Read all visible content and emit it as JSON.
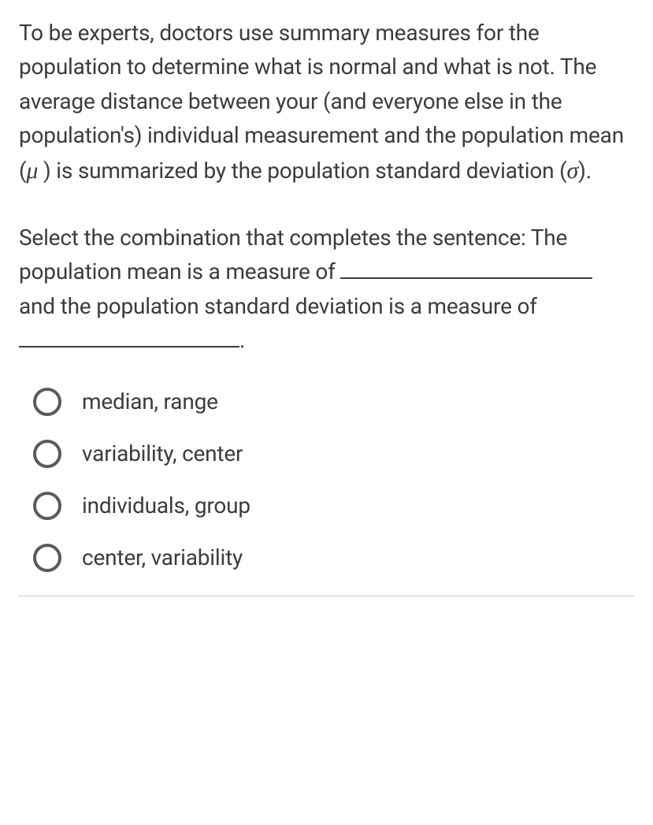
{
  "paragraph": {
    "part1": "To be experts, doctors use summary measures for the population to determine what is normal and what is not.  The average distance between your (and everyone else in the population's) individual measurement and the population mean (",
    "mu": "μ",
    "part2": " ) is summarized by the population standard deviation (",
    "sigma": "σ",
    "part3": ")."
  },
  "question": {
    "part1": "Select the combination that completes the sentence:  The population mean is a measure of ",
    "part2": " and the population standard deviation is a measure of ",
    "period": "."
  },
  "options": [
    {
      "label": "median, range"
    },
    {
      "label": "variability, center"
    },
    {
      "label": "individuals, group"
    },
    {
      "label": "center, variability"
    }
  ],
  "styles": {
    "text_color": "#3c3c3c",
    "background_color": "#ffffff",
    "radio_border_color": "#5a5a5a",
    "radio_border_width": 4,
    "font_size": 28,
    "blank_width_long": 320,
    "blank_width_short": 280,
    "divider_color": "#cccccc"
  }
}
